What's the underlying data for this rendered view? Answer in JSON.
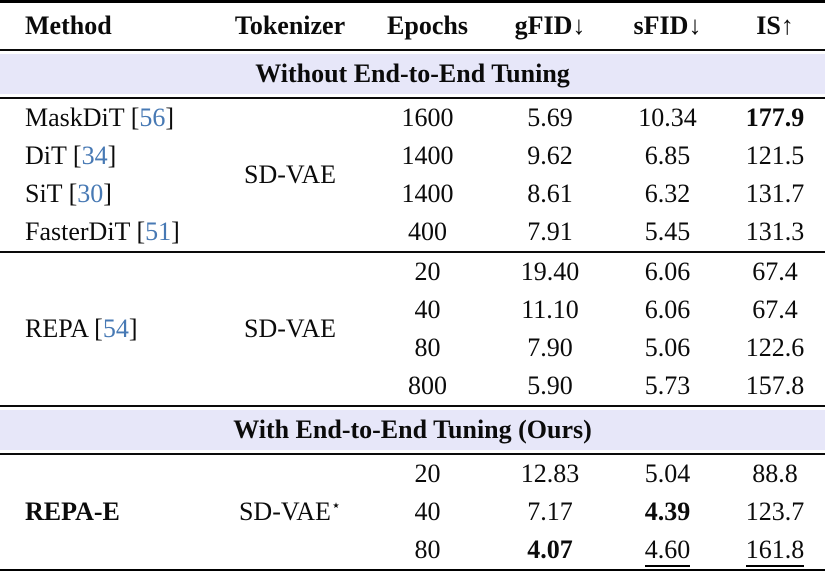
{
  "colors": {
    "citation_blue": "#4779b4",
    "section_band_lavender": "#e7e7f9",
    "rule_black": "#000000"
  },
  "symbols": {
    "bracket_open": "[",
    "bracket_close": "]"
  },
  "header": {
    "method": "Method",
    "tokenizer": "Tokenizer",
    "epochs": "Epochs",
    "gfid": {
      "label": "gFID",
      "arrow": "↓"
    },
    "sfid": {
      "label": "sFID",
      "arrow": "↓"
    },
    "is": {
      "label": "IS",
      "arrow": "↑"
    }
  },
  "section1": {
    "title": "Without End-to-End Tuning",
    "block1": {
      "tokenizer": "SD-VAE",
      "methods": [
        {
          "name": "MaskDiT",
          "cite": "56"
        },
        {
          "name": "DiT",
          "cite": "34"
        },
        {
          "name": "SiT",
          "cite": "30"
        },
        {
          "name": "FasterDiT",
          "cite": "51"
        }
      ],
      "rows": [
        {
          "epochs": "1600",
          "gfid": "5.69",
          "sfid": "10.34",
          "is": "177.9"
        },
        {
          "epochs": "1400",
          "gfid": "9.62",
          "sfid": "6.85",
          "is": "121.5"
        },
        {
          "epochs": "1400",
          "gfid": "8.61",
          "sfid": "6.32",
          "is": "131.7"
        },
        {
          "epochs": "400",
          "gfid": "7.91",
          "sfid": "5.45",
          "is": "131.3"
        }
      ]
    },
    "block2": {
      "method": {
        "name": "REPA",
        "cite": "54"
      },
      "tokenizer": "SD-VAE",
      "rows": [
        {
          "epochs": "20",
          "gfid": "19.40",
          "sfid": "6.06",
          "is": "67.4"
        },
        {
          "epochs": "40",
          "gfid": "11.10",
          "sfid": "6.06",
          "is": "67.4"
        },
        {
          "epochs": "80",
          "gfid": "7.90",
          "sfid": "5.06",
          "is": "122.6"
        },
        {
          "epochs": "800",
          "gfid": "5.90",
          "sfid": "5.73",
          "is": "157.8"
        }
      ]
    }
  },
  "section2": {
    "title": "With End-to-End Tuning (Ours)",
    "block": {
      "method": "REPA-E",
      "tokenizer": "SD-VAE",
      "tokenizer_sup": "⋆",
      "rows": [
        {
          "epochs": "20",
          "gfid": "12.83",
          "sfid": "5.04",
          "is": "88.8"
        },
        {
          "epochs": "40",
          "gfid": "7.17",
          "sfid": "4.39",
          "is": "123.7"
        },
        {
          "epochs": "80",
          "gfid": "4.07",
          "sfid": "4.60",
          "is": "161.8"
        }
      ]
    }
  }
}
